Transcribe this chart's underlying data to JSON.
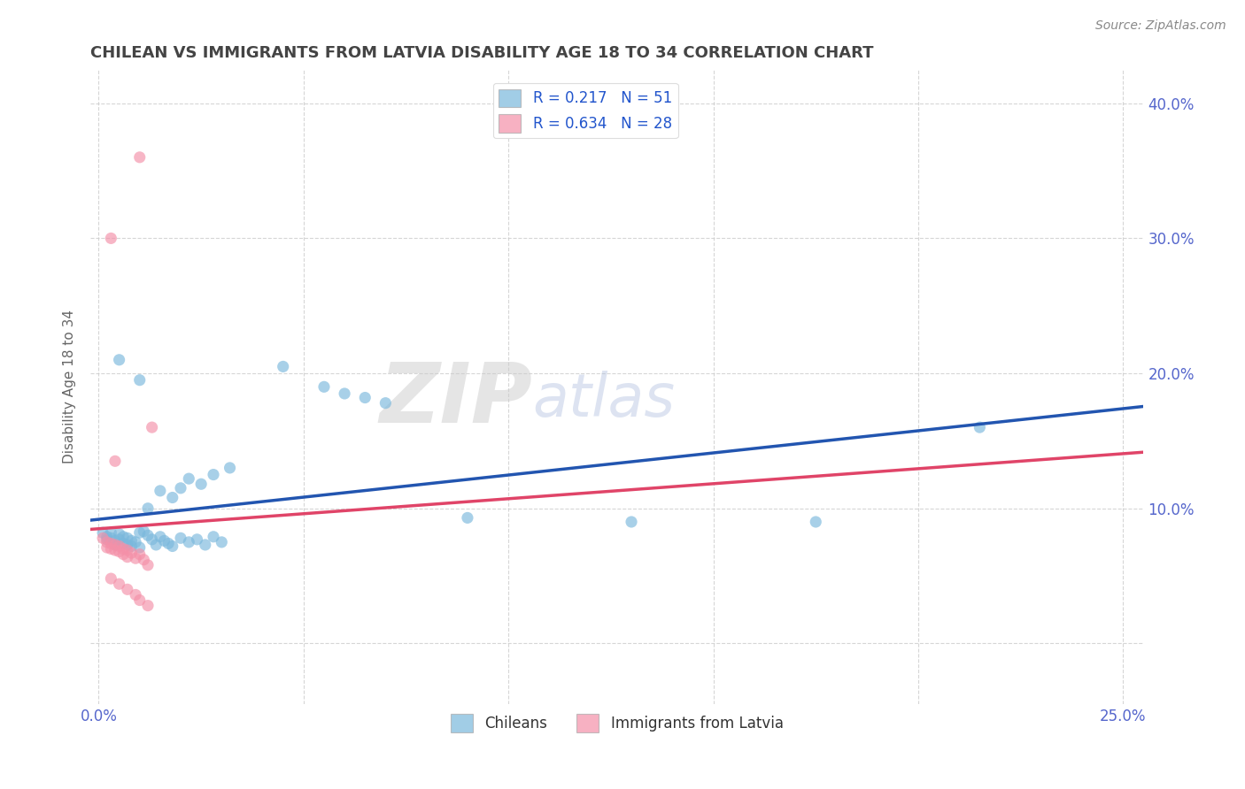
{
  "title": "CHILEAN VS IMMIGRANTS FROM LATVIA DISABILITY AGE 18 TO 34 CORRELATION CHART",
  "source": "Source: ZipAtlas.com",
  "ylabel": "Disability Age 18 to 34",
  "xlim": [
    -0.002,
    0.255
  ],
  "ylim": [
    -0.045,
    0.425
  ],
  "xticks": [
    0.0,
    0.05,
    0.1,
    0.15,
    0.2,
    0.25
  ],
  "yticks": [
    0.0,
    0.1,
    0.2,
    0.3,
    0.4
  ],
  "legend_label1": "Chileans",
  "legend_label2": "Immigrants from Latvia",
  "r_blue": 0.217,
  "n_blue": 51,
  "r_pink": 0.634,
  "n_pink": 28,
  "blue_color": "#7ab8dc",
  "pink_color": "#f490a8",
  "blue_line_color": "#2255b0",
  "pink_line_color": "#e04468",
  "watermark_zip": "ZIP",
  "watermark_atlas": "atlas",
  "background_color": "#ffffff",
  "grid_color": "#cccccc",
  "title_color": "#444444",
  "axis_label_color": "#5566cc",
  "blue_scatter": [
    [
      0.001,
      0.082
    ],
    [
      0.002,
      0.079
    ],
    [
      0.002,
      0.077
    ],
    [
      0.003,
      0.082
    ],
    [
      0.003,
      0.078
    ],
    [
      0.004,
      0.076
    ],
    [
      0.004,
      0.073
    ],
    [
      0.005,
      0.081
    ],
    [
      0.005,
      0.077
    ],
    [
      0.006,
      0.079
    ],
    [
      0.006,
      0.074
    ],
    [
      0.007,
      0.078
    ],
    [
      0.007,
      0.073
    ],
    [
      0.008,
      0.076
    ],
    [
      0.008,
      0.072
    ],
    [
      0.009,
      0.075
    ],
    [
      0.01,
      0.071
    ],
    [
      0.01,
      0.082
    ],
    [
      0.011,
      0.083
    ],
    [
      0.012,
      0.08
    ],
    [
      0.013,
      0.077
    ],
    [
      0.014,
      0.073
    ],
    [
      0.015,
      0.079
    ],
    [
      0.016,
      0.076
    ],
    [
      0.017,
      0.074
    ],
    [
      0.018,
      0.072
    ],
    [
      0.02,
      0.078
    ],
    [
      0.022,
      0.075
    ],
    [
      0.024,
      0.077
    ],
    [
      0.026,
      0.073
    ],
    [
      0.028,
      0.079
    ],
    [
      0.03,
      0.075
    ],
    [
      0.012,
      0.1
    ],
    [
      0.015,
      0.113
    ],
    [
      0.018,
      0.108
    ],
    [
      0.02,
      0.115
    ],
    [
      0.022,
      0.122
    ],
    [
      0.025,
      0.118
    ],
    [
      0.028,
      0.125
    ],
    [
      0.032,
      0.13
    ],
    [
      0.005,
      0.21
    ],
    [
      0.01,
      0.195
    ],
    [
      0.045,
      0.205
    ],
    [
      0.055,
      0.19
    ],
    [
      0.06,
      0.185
    ],
    [
      0.065,
      0.182
    ],
    [
      0.07,
      0.178
    ],
    [
      0.09,
      0.093
    ],
    [
      0.13,
      0.09
    ],
    [
      0.175,
      0.09
    ],
    [
      0.215,
      0.16
    ]
  ],
  "pink_scatter": [
    [
      0.001,
      0.078
    ],
    [
      0.002,
      0.075
    ],
    [
      0.002,
      0.071
    ],
    [
      0.003,
      0.074
    ],
    [
      0.003,
      0.07
    ],
    [
      0.004,
      0.073
    ],
    [
      0.004,
      0.069
    ],
    [
      0.005,
      0.072
    ],
    [
      0.005,
      0.068
    ],
    [
      0.006,
      0.07
    ],
    [
      0.006,
      0.066
    ],
    [
      0.007,
      0.069
    ],
    [
      0.007,
      0.064
    ],
    [
      0.008,
      0.067
    ],
    [
      0.009,
      0.063
    ],
    [
      0.01,
      0.066
    ],
    [
      0.011,
      0.062
    ],
    [
      0.012,
      0.058
    ],
    [
      0.003,
      0.048
    ],
    [
      0.005,
      0.044
    ],
    [
      0.007,
      0.04
    ],
    [
      0.009,
      0.036
    ],
    [
      0.01,
      0.032
    ],
    [
      0.012,
      0.028
    ],
    [
      0.004,
      0.135
    ],
    [
      0.003,
      0.3
    ],
    [
      0.01,
      0.36
    ],
    [
      0.013,
      0.16
    ]
  ]
}
